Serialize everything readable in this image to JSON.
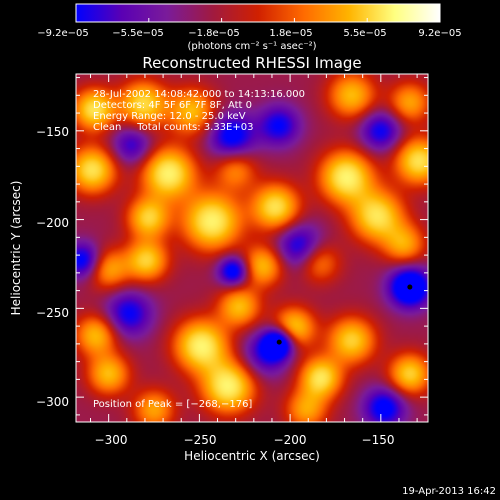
{
  "chart_data": {
    "type": "heatmap",
    "title": "Reconstructed RHESSI Image",
    "xlabel": "Heliocentric X (arcsec)",
    "ylabel": "Heliocentric Y (arcsec)",
    "xlim": [
      -318,
      -124
    ],
    "ylim": [
      -314,
      -118
    ],
    "x_ticks": [
      -300,
      -250,
      -200,
      -150
    ],
    "y_ticks": [
      -300,
      -250,
      -200,
      -150
    ],
    "x_tick_labels": [
      "−300",
      "−250",
      "−200",
      "−150"
    ],
    "y_tick_labels": [
      "−300",
      "−250",
      "−200",
      "−150"
    ],
    "colorbar": {
      "range": [
        -9.2e-05,
        9.2e-05
      ],
      "tick_labels": [
        "−9.2e−05",
        "−5.5e−05",
        "−1.8e−05",
        "1.8e−05",
        "5.5e−05",
        "9.2e−05"
      ],
      "unit_label": "(photons cm⁻² s⁻¹ asec⁻²)",
      "stops": [
        "#0000ff",
        "#5a00b4",
        "#7a1b9a",
        "#a01a40",
        "#d02000",
        "#ff6a00",
        "#ffb400",
        "#ffff80",
        "#ffffff"
      ]
    },
    "annotations": [
      "28-Jul-2002 14:08:42.000 to 14:13:16.000",
      "Detectors: 4F 5F 6F 7F 8F, Att 0",
      "Energy Range: 12.0 - 25.0 keV",
      "Clean     Total counts: 3.33E+03"
    ],
    "peak_label": "Position of Peak = [−268,−176]",
    "peak": [
      -268,
      -176
    ],
    "blobs": [
      {
        "x": -308,
        "y": -138,
        "v": 0.9,
        "s": 8
      },
      {
        "x": -281,
        "y": -135,
        "v": 0.85,
        "s": 9
      },
      {
        "x": -254,
        "y": -139,
        "v": 0.7,
        "s": 9
      },
      {
        "x": -166,
        "y": -130,
        "v": 0.7,
        "s": 9
      },
      {
        "x": -134,
        "y": -134,
        "v": 0.6,
        "s": 8
      },
      {
        "x": -309,
        "y": -172,
        "v": 0.9,
        "s": 9
      },
      {
        "x": -267,
        "y": -174,
        "v": 1.0,
        "s": 10
      },
      {
        "x": -230,
        "y": -172,
        "v": 0.5,
        "s": 8
      },
      {
        "x": -169,
        "y": -176,
        "v": 1.0,
        "s": 10
      },
      {
        "x": -129,
        "y": -167,
        "v": 0.9,
        "s": 9
      },
      {
        "x": -278,
        "y": -199,
        "v": 0.8,
        "s": 8
      },
      {
        "x": -243,
        "y": -201,
        "v": 1.0,
        "s": 11
      },
      {
        "x": -208,
        "y": -193,
        "v": 0.9,
        "s": 9
      },
      {
        "x": -152,
        "y": -198,
        "v": 0.9,
        "s": 10
      },
      {
        "x": -300,
        "y": -228,
        "v": 0.6,
        "s": 8
      },
      {
        "x": -279,
        "y": -223,
        "v": 0.8,
        "s": 8
      },
      {
        "x": -215,
        "y": -226,
        "v": 0.7,
        "s": 8
      },
      {
        "x": -184,
        "y": -224,
        "v": 0.5,
        "s": 8
      },
      {
        "x": -137,
        "y": -214,
        "v": 0.6,
        "s": 8
      },
      {
        "x": -228,
        "y": -249,
        "v": 0.7,
        "s": 8
      },
      {
        "x": -198,
        "y": -261,
        "v": 0.8,
        "s": 8
      },
      {
        "x": -307,
        "y": -265,
        "v": 0.7,
        "s": 8
      },
      {
        "x": -249,
        "y": -271,
        "v": 1.0,
        "s": 10
      },
      {
        "x": -166,
        "y": -268,
        "v": 0.8,
        "s": 9
      },
      {
        "x": -300,
        "y": -287,
        "v": 0.7,
        "s": 8
      },
      {
        "x": -234,
        "y": -294,
        "v": 1.0,
        "s": 10
      },
      {
        "x": -183,
        "y": -289,
        "v": 0.9,
        "s": 8
      },
      {
        "x": -134,
        "y": -287,
        "v": 0.8,
        "s": 8
      },
      {
        "x": -275,
        "y": -307,
        "v": 0.6,
        "s": 8
      },
      {
        "x": -191,
        "y": -307,
        "v": 0.6,
        "s": 8
      },
      {
        "x": -287,
        "y": -158,
        "v": -0.5,
        "s": 8
      },
      {
        "x": -232,
        "y": -153,
        "v": -0.7,
        "s": 9
      },
      {
        "x": -206,
        "y": -147,
        "v": -0.6,
        "s": 8
      },
      {
        "x": -150,
        "y": -150,
        "v": -0.6,
        "s": 8
      },
      {
        "x": -195,
        "y": -215,
        "v": -0.6,
        "s": 9
      },
      {
        "x": -231,
        "y": -229,
        "v": -0.8,
        "s": 6
      },
      {
        "x": -314,
        "y": -223,
        "v": -0.7,
        "s": 7
      },
      {
        "x": -134,
        "y": -238,
        "v": -1.0,
        "s": 8
      },
      {
        "x": -289,
        "y": -253,
        "v": -0.6,
        "s": 9
      },
      {
        "x": -206,
        "y": -269,
        "v": -1.0,
        "s": 6
      },
      {
        "x": -214,
        "y": -276,
        "v": -0.5,
        "s": 9
      },
      {
        "x": -148,
        "y": -306,
        "v": -0.7,
        "s": 8
      }
    ]
  },
  "footer": {
    "timestamp": "19-Apr-2013 16:42"
  }
}
